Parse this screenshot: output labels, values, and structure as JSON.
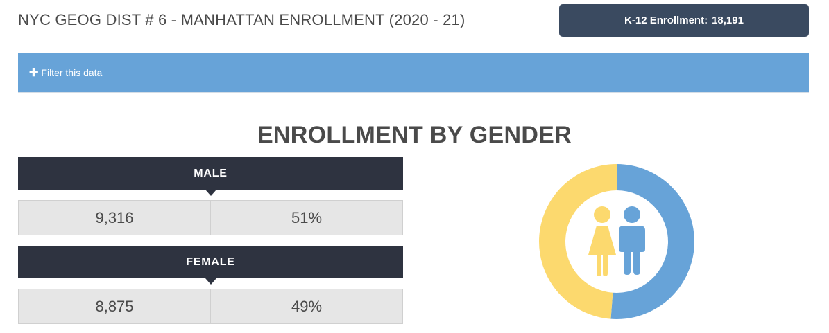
{
  "header": {
    "title": "NYC GEOG DIST # 6 - MANHATTAN ENROLLMENT (2020 - 21)",
    "badge_label": "K-12 Enrollment:",
    "badge_value": "18,191"
  },
  "filter": {
    "label": "Filter this data",
    "icon": "plus-icon"
  },
  "section_title": "ENROLLMENT BY GENDER",
  "genders": [
    {
      "label": "MALE",
      "count": "9,316",
      "percent": "51%"
    },
    {
      "label": "FEMALE",
      "count": "8,875",
      "percent": "49%"
    }
  ],
  "colors": {
    "male": "#67a3d8",
    "female": "#fcd96e",
    "header_bg": "#2e3340",
    "badge_bg": "#3a4a60"
  },
  "chart_data": {
    "type": "pie",
    "title": "ENROLLMENT BY GENDER",
    "categories": [
      "Male",
      "Female"
    ],
    "values": [
      9316,
      8875
    ],
    "percents": [
      51,
      49
    ]
  }
}
